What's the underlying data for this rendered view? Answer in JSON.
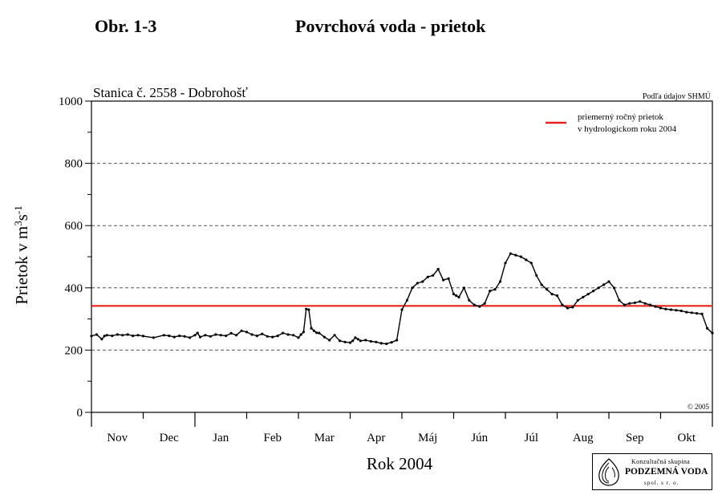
{
  "header": {
    "figure_label": "Obr. 1-3",
    "figure_title": "Povrchová voda - prietok"
  },
  "chart_data": {
    "type": "line",
    "station": "Stanica č. 2558 - Dobrohošť",
    "source": "Podľa údajov SHMÚ",
    "copyright": "© 2005",
    "xlabel": "Rok 2004",
    "ylabel": "Prietok v m3s-1",
    "ylim": [
      0,
      1000
    ],
    "yticks": [
      0,
      200,
      400,
      600,
      800,
      1000
    ],
    "grid": "horizontal dashed at 200, 400, 600, 800",
    "legend_position": "top-right",
    "categories": [
      "Nov",
      "Dec",
      "Jan",
      "Feb",
      "Mar",
      "Apr",
      "Máj",
      "Jún",
      "Júl",
      "Aug",
      "Sep",
      "Okt"
    ],
    "reference_line": {
      "name": "priemerný ročný prietok v hydrologickom roku 2004",
      "legend_lines": [
        "priemerný ročný prietok",
        "v hydrologickom roku 2004"
      ],
      "value": 342,
      "color": "#e8221c"
    },
    "series": [
      {
        "color": "#000000",
        "x": [
          0,
          0.1,
          0.2,
          0.25,
          0.3,
          0.4,
          0.5,
          0.6,
          0.7,
          0.8,
          0.9,
          1.0,
          1.2,
          1.4,
          1.5,
          1.6,
          1.7,
          1.8,
          1.9,
          2.0,
          2.05,
          2.1,
          2.2,
          2.3,
          2.4,
          2.5,
          2.6,
          2.7,
          2.8,
          2.9,
          3.0,
          3.1,
          3.2,
          3.3,
          3.4,
          3.5,
          3.6,
          3.7,
          3.8,
          3.9,
          4.0,
          4.05,
          4.1,
          4.15,
          4.2,
          4.25,
          4.3,
          4.35,
          4.4,
          4.5,
          4.6,
          4.7,
          4.8,
          4.9,
          5.0,
          5.05,
          5.1,
          5.15,
          5.2,
          5.3,
          5.4,
          5.5,
          5.6,
          5.7,
          5.8,
          5.9,
          6.0,
          6.1,
          6.2,
          6.3,
          6.4,
          6.5,
          6.6,
          6.7,
          6.8,
          6.9,
          7.0,
          7.05,
          7.1,
          7.2,
          7.3,
          7.4,
          7.5,
          7.6,
          7.7,
          7.8,
          7.9,
          8.0,
          8.1,
          8.2,
          8.3,
          8.4,
          8.5,
          8.6,
          8.7,
          8.8,
          8.9,
          9.0,
          9.1,
          9.2,
          9.3,
          9.4,
          9.5,
          9.6,
          9.7,
          9.8,
          9.9,
          10.0,
          10.1,
          10.2,
          10.3,
          10.4,
          10.5,
          10.6,
          10.7,
          10.8,
          10.9,
          11.0,
          11.1,
          11.2,
          11.3,
          11.4,
          11.5,
          11.6,
          11.7,
          11.8,
          11.9,
          12.0
        ],
        "values": [
          245,
          250,
          235,
          245,
          248,
          246,
          250,
          248,
          250,
          246,
          248,
          245,
          240,
          248,
          246,
          242,
          246,
          244,
          240,
          248,
          255,
          242,
          248,
          244,
          250,
          248,
          246,
          254,
          248,
          262,
          258,
          250,
          246,
          252,
          244,
          242,
          246,
          255,
          250,
          248,
          240,
          250,
          258,
          332,
          330,
          270,
          262,
          256,
          255,
          242,
          232,
          248,
          230,
          226,
          224,
          230,
          240,
          235,
          230,
          232,
          228,
          226,
          222,
          220,
          225,
          232,
          330,
          360,
          400,
          415,
          420,
          435,
          440,
          460,
          425,
          430,
          380,
          375,
          370,
          400,
          360,
          345,
          340,
          350,
          390,
          395,
          420,
          480,
          510,
          505,
          500,
          490,
          480,
          440,
          410,
          395,
          380,
          375,
          345,
          335,
          338,
          360,
          370,
          380,
          390,
          400,
          410,
          420,
          400,
          360,
          345,
          350,
          352,
          356,
          350,
          345,
          340,
          335,
          332,
          330,
          328,
          326,
          322,
          320,
          318,
          316,
          270,
          255
        ]
      }
    ]
  },
  "logo": {
    "line1": "Konzultačná skupina",
    "line2": "PODZEMNÁ VODA",
    "line3": "spol. s r. o."
  }
}
